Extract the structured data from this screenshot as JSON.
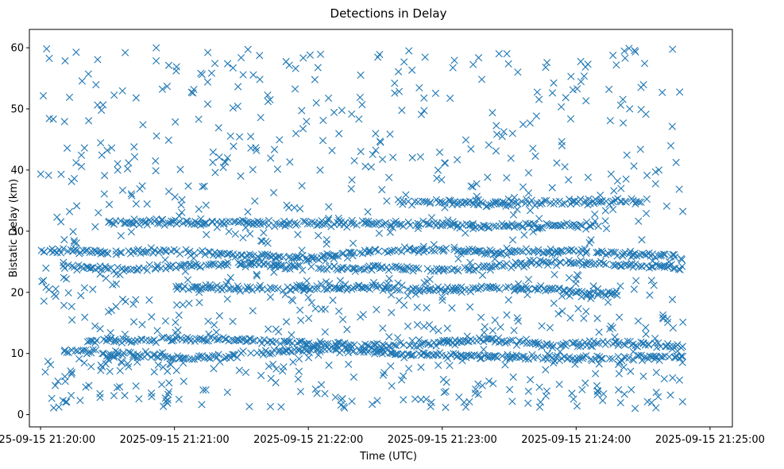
{
  "chart_data": {
    "type": "scatter",
    "title": "Detections in Delay",
    "xlabel": "Time (UTC)",
    "ylabel": "Bistatic Delay (km)",
    "marker": "x",
    "color": "#1f77b4",
    "grid": false,
    "legend": "none",
    "x_start": "2025-09-15 21:19:55",
    "x_end": "2025-09-15 21:25:10",
    "x_ticks": [
      "2025-09-15 21:20:00",
      "2025-09-15 21:21:00",
      "2025-09-15 21:22:00",
      "2025-09-15 21:23:00",
      "2025-09-15 21:24:00",
      "2025-09-15 21:25:00"
    ],
    "ylim": [
      -2,
      63
    ],
    "y_ticks": [
      "0",
      "10",
      "20",
      "30",
      "40",
      "50",
      "60"
    ],
    "x_data_start": "2025-09-15 21:19:59",
    "x_data_end": "2025-09-15 21:24:48",
    "tracks": [
      {
        "name": "delay ~26 km",
        "points": [
          [
            "2025-09-15 21:20:00",
            26.8
          ],
          [
            "2025-09-15 21:20:30",
            26.5
          ],
          [
            "2025-09-15 21:21:00",
            26.9
          ],
          [
            "2025-09-15 21:21:30",
            26.0
          ],
          [
            "2025-09-15 21:22:00",
            25.5
          ],
          [
            "2025-09-15 21:22:30",
            26.8
          ],
          [
            "2025-09-15 21:23:00",
            27.0
          ],
          [
            "2025-09-15 21:23:30",
            26.5
          ],
          [
            "2025-09-15 21:24:00",
            26.8
          ],
          [
            "2025-09-15 21:24:48",
            25.8
          ]
        ]
      },
      {
        "name": "delay ~24 km",
        "points": [
          [
            "2025-09-15 21:20:10",
            24.2
          ],
          [
            "2025-09-15 21:20:40",
            23.8
          ],
          [
            "2025-09-15 21:21:10",
            24.5
          ],
          [
            "2025-09-15 21:21:40",
            24.5
          ],
          [
            "2025-09-15 21:22:10",
            24.0
          ],
          [
            "2025-09-15 21:22:40",
            24.0
          ],
          [
            "2025-09-15 21:23:10",
            23.6
          ],
          [
            "2025-09-15 21:23:40",
            25.0
          ],
          [
            "2025-09-15 21:24:10",
            24.8
          ],
          [
            "2025-09-15 21:24:48",
            24.0
          ]
        ]
      },
      {
        "name": "delay ~12 km",
        "points": [
          [
            "2025-09-15 21:20:20",
            12.0
          ],
          [
            "2025-09-15 21:20:50",
            12.2
          ],
          [
            "2025-09-15 21:21:20",
            12.3
          ],
          [
            "2025-09-15 21:21:50",
            11.8
          ],
          [
            "2025-09-15 21:22:20",
            11.2
          ],
          [
            "2025-09-15 21:22:50",
            11.5
          ],
          [
            "2025-09-15 21:23:20",
            12.3
          ],
          [
            "2025-09-15 21:23:50",
            11.5
          ],
          [
            "2025-09-15 21:24:20",
            11.8
          ],
          [
            "2025-09-15 21:24:48",
            11.0
          ]
        ]
      },
      {
        "name": "delay ~10 km",
        "points": [
          [
            "2025-09-15 21:20:10",
            10.5
          ],
          [
            "2025-09-15 21:20:40",
            9.8
          ],
          [
            "2025-09-15 21:21:10",
            9.2
          ],
          [
            "2025-09-15 21:21:40",
            10.2
          ],
          [
            "2025-09-15 21:22:10",
            10.8
          ],
          [
            "2025-09-15 21:22:40",
            10.0
          ],
          [
            "2025-09-15 21:23:10",
            9.6
          ],
          [
            "2025-09-15 21:23:40",
            9.4
          ],
          [
            "2025-09-15 21:24:10",
            9.2
          ],
          [
            "2025-09-15 21:24:48",
            9.5
          ]
        ]
      },
      {
        "name": "delay ~21 km",
        "points": [
          [
            "2025-09-15 21:21:00",
            20.8
          ],
          [
            "2025-09-15 21:21:40",
            20.6
          ],
          [
            "2025-09-15 21:22:20",
            20.8
          ],
          [
            "2025-09-15 21:22:50",
            20.5
          ],
          [
            "2025-09-15 21:23:40",
            20.8
          ],
          [
            "2025-09-15 21:24:20",
            19.5
          ]
        ]
      },
      {
        "name": "delay ~31 km",
        "points": [
          [
            "2025-09-15 21:20:30",
            31.5
          ],
          [
            "2025-09-15 21:22:50",
            31.2
          ],
          [
            "2025-09-15 21:23:20",
            30.8
          ],
          [
            "2025-09-15 21:24:10",
            31.0
          ]
        ]
      },
      {
        "name": "delay ~35 km",
        "points": [
          [
            "2025-09-15 21:22:40",
            34.8
          ],
          [
            "2025-09-15 21:23:00",
            34.8
          ],
          [
            "2025-09-15 21:23:30",
            34.5
          ],
          [
            "2025-09-15 21:24:00",
            34.8
          ],
          [
            "2025-09-15 21:24:30",
            35.0
          ]
        ]
      }
    ],
    "scattered_points": {
      "count": 850,
      "y_range": [
        1,
        60
      ],
      "x_range": [
        "2025-09-15 21:19:59",
        "2025-09-15 21:24:48"
      ]
    }
  }
}
